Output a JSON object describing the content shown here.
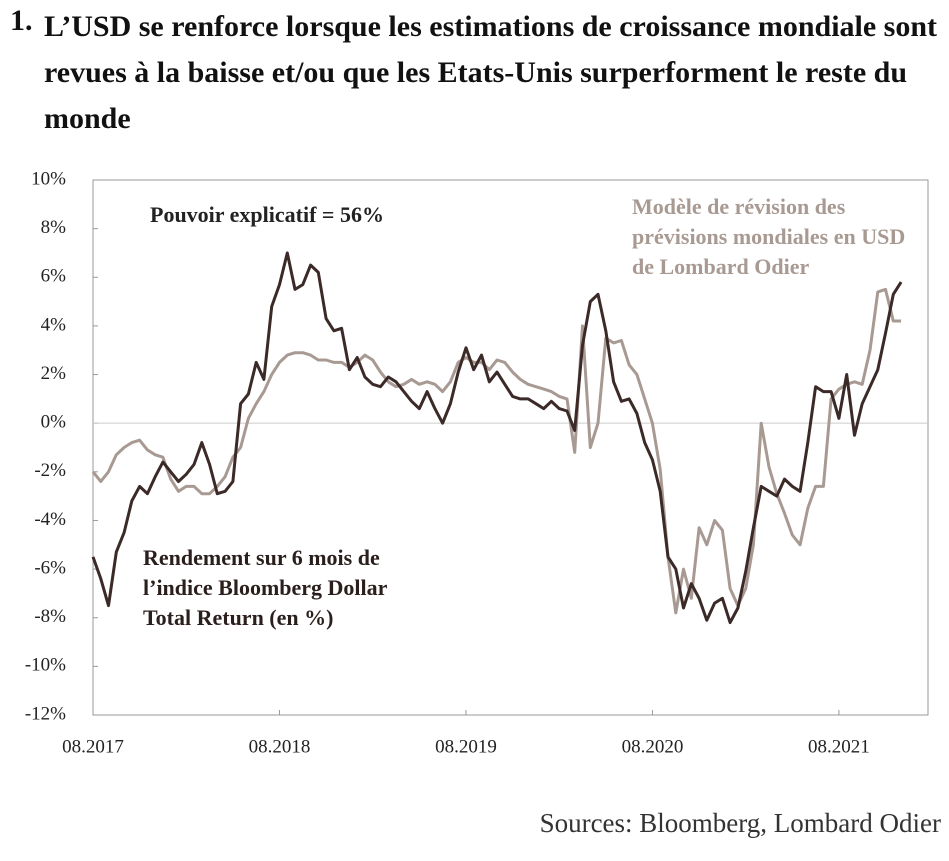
{
  "chart_data": {
    "type": "line",
    "title_number": "1.",
    "title": "L’USD se renforce lorsque les estimations de croissance mondiale sont revues à la baisse et/ou que les Etats-Unis surperforment le reste du monde",
    "annotation": "Pouvoir explicatif = 56%",
    "source": "Sources: Bloomberg, Lombard Odier",
    "categories": [
      "08.2017",
      null,
      null,
      null,
      null,
      null,
      null,
      null,
      null,
      null,
      null,
      null,
      null,
      null,
      null,
      null,
      null,
      null,
      null,
      null,
      null,
      null,
      null,
      null,
      "08.2018",
      null,
      null,
      null,
      null,
      null,
      null,
      null,
      null,
      null,
      null,
      null,
      null,
      null,
      null,
      null,
      null,
      null,
      null,
      null,
      null,
      null,
      null,
      null,
      "08.2019",
      null,
      null,
      null,
      null,
      null,
      null,
      null,
      null,
      null,
      null,
      null,
      null,
      null,
      null,
      null,
      null,
      null,
      null,
      null,
      null,
      null,
      null,
      null,
      "08.2020",
      null,
      null,
      null,
      null,
      null,
      null,
      null,
      null,
      null,
      null,
      null,
      null,
      null,
      null,
      null,
      null,
      null,
      null,
      null,
      null,
      null,
      null,
      null,
      "08.2021",
      null,
      null,
      null,
      null,
      null,
      null,
      null,
      null
    ],
    "series": [
      {
        "name": "Rendement sur 6 mois de l’indice Bloomberg Dollar Total Return (en %)",
        "color": "#3b2a27",
        "values": [
          -5.5,
          -6.4,
          -7.5,
          -5.3,
          -4.5,
          -3.2,
          -2.6,
          -2.9,
          -2.2,
          -1.6,
          -2,
          -2.4,
          -2.1,
          -1.7,
          -0.8,
          -1.7,
          -2.9,
          -2.8,
          -2.4,
          0.8,
          1.2,
          2.5,
          1.8,
          4.8,
          5.7,
          7,
          5.5,
          5.7,
          6.5,
          6.2,
          4.3,
          3.8,
          3.9,
          2.2,
          2.7,
          1.9,
          1.6,
          1.5,
          1.9,
          1.7,
          1.3,
          0.9,
          0.6,
          1.3,
          0.6,
          0,
          0.8,
          2.1,
          3.1,
          2.2,
          2.8,
          1.7,
          2.1,
          1.6,
          1.1,
          1,
          1,
          0.8,
          0.6,
          0.9,
          0.6,
          0.5,
          -0.3,
          3.2,
          5,
          5.3,
          3.8,
          1.7,
          0.9,
          1,
          0.4,
          -0.8,
          -1.5,
          -2.8,
          -5.5,
          -6,
          -7.6,
          -6.6,
          -7.2,
          -8.1,
          -7.4,
          -7.2,
          -8.2,
          -7.6,
          -6.1,
          -4.3,
          -2.6,
          -2.8,
          -3,
          -2.3,
          -2.6,
          -2.8,
          -0.8,
          1.5,
          1.3,
          1.3,
          0.2,
          2,
          -0.5,
          0.8,
          1.5,
          2.2,
          3.7,
          5.3,
          5.8
        ]
      },
      {
        "name": "Modèle de révision des prévisions mondiales en USD de Lombard Odier",
        "color": "#a89a92",
        "values": [
          -2,
          -2.4,
          -2,
          -1.3,
          -1,
          -0.8,
          -0.7,
          -1.1,
          -1.3,
          -1.4,
          -2.3,
          -2.8,
          -2.6,
          -2.6,
          -2.9,
          -2.9,
          -2.6,
          -2.2,
          -1.4,
          -1,
          0.2,
          0.8,
          1.3,
          2,
          2.5,
          2.8,
          2.9,
          2.9,
          2.8,
          2.6,
          2.6,
          2.5,
          2.5,
          2.3,
          2.5,
          2.8,
          2.6,
          2.1,
          1.7,
          1.5,
          1.6,
          1.8,
          1.6,
          1.7,
          1.6,
          1.3,
          1.7,
          2.5,
          2.7,
          2.5,
          2.5,
          2.2,
          2.6,
          2.5,
          2.1,
          1.8,
          1.6,
          1.5,
          1.4,
          1.3,
          1.1,
          1,
          -1.2,
          4,
          -1,
          0,
          3.5,
          3.3,
          3.4,
          2.4,
          2,
          1,
          0,
          -1.9,
          -5.5,
          -7.8,
          -6,
          -7.2,
          -4.3,
          -5,
          -4,
          -4.4,
          -6.8,
          -7.5,
          -6.8,
          -5,
          0,
          -1.8,
          -2.9,
          -3.7,
          -4.6,
          -5,
          -3.5,
          -2.6,
          -2.6,
          1,
          1.4,
          1.6,
          1.7,
          1.6,
          3,
          5.4,
          5.5,
          4.2,
          4.2
        ]
      }
    ],
    "ylim": [
      -12,
      10
    ],
    "yticks": [
      {
        "value": -12,
        "label": "-12%"
      },
      {
        "value": -10,
        "label": "-10%"
      },
      {
        "value": -8,
        "label": "-8%"
      },
      {
        "value": -6,
        "label": "-6%"
      },
      {
        "value": -4,
        "label": "-4%"
      },
      {
        "value": -2,
        "label": "-2%"
      },
      {
        "value": 0,
        "label": "0%"
      },
      {
        "value": 2,
        "label": "2%"
      },
      {
        "value": 4,
        "label": "4%"
      },
      {
        "value": 6,
        "label": "6%"
      },
      {
        "value": 8,
        "label": "8%"
      },
      {
        "value": 10,
        "label": "10%"
      }
    ]
  }
}
